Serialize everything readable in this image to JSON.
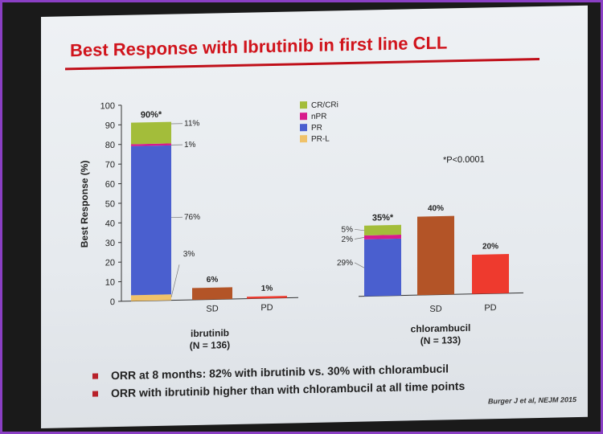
{
  "slide": {
    "title": "Best Response with Ibrutinib in first line CLL",
    "p_value": "*P<0.0001",
    "bullets": [
      "ORR at 8 months: 82% with ibrutinib vs. 30% with chlorambucil",
      "ORR with ibrutinib higher than with chlorambucil at all time points"
    ],
    "citation": "Burger J et al, NEJM 2015"
  },
  "colors": {
    "CR/CRi": "#a3bd3a",
    "nPR": "#d81b8c",
    "PR": "#4a5fcf",
    "PR-L": "#f0c26a",
    "SD": "#b35427",
    "PD": "#ee3a2e"
  },
  "chart_data": {
    "type": "bar",
    "ylabel": "Best Response (%)",
    "ylim": [
      0,
      100
    ],
    "yticks": [
      0,
      10,
      20,
      30,
      40,
      50,
      60,
      70,
      80,
      90,
      100
    ],
    "legend": [
      "CR/CRi",
      "nPR",
      "PR",
      "PR-L"
    ],
    "groups": [
      {
        "name": "ibrutinib",
        "n_label": "(N = 136)",
        "stacked": {
          "total_label": "90%*",
          "segments": [
            {
              "name": "PR-L",
              "value": 3,
              "label": "3%"
            },
            {
              "name": "PR",
              "value": 76,
              "label": "76%"
            },
            {
              "name": "nPR",
              "value": 1,
              "label": "1%"
            },
            {
              "name": "CR/CRi",
              "value": 11,
              "label": "11%"
            }
          ]
        },
        "bars": [
          {
            "category": "SD",
            "value": 6,
            "label": "6%"
          },
          {
            "category": "PD",
            "value": 1,
            "label": "1%"
          }
        ]
      },
      {
        "name": "chlorambucil",
        "n_label": "(N = 133)",
        "stacked": {
          "total_label": "35%*",
          "segments": [
            {
              "name": "PR",
              "value": 29,
              "label": "29%"
            },
            {
              "name": "nPR",
              "value": 2,
              "label": "2%"
            },
            {
              "name": "CR/CRi",
              "value": 5,
              "label": "5%"
            }
          ]
        },
        "bars": [
          {
            "category": "SD",
            "value": 40,
            "label": "40%"
          },
          {
            "category": "PD",
            "value": 20,
            "label": "20%"
          }
        ]
      }
    ]
  }
}
